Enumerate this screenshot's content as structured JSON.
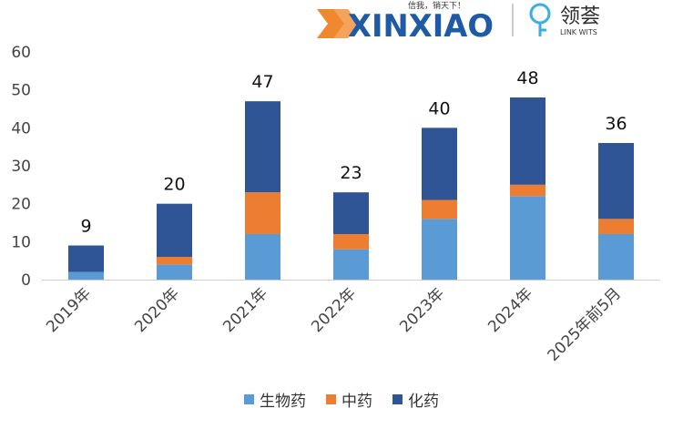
{
  "logos": {
    "xinxiao": {
      "name": "XINXIAO",
      "slogan": "信我，销天下！"
    },
    "linkwits": {
      "name_cn": "领荟",
      "name_en": "LINK WITS"
    }
  },
  "chart_data": {
    "type": "bar",
    "stacked": true,
    "categories": [
      "2019年",
      "2020年",
      "2021年",
      "2022年",
      "2023年",
      "2024年",
      "2025年前5月"
    ],
    "series": [
      {
        "name": "生物药",
        "color": "#5b9bd5",
        "values": [
          2,
          4,
          12,
          8,
          16,
          22,
          12
        ]
      },
      {
        "name": "中药",
        "color": "#ed7d31",
        "values": [
          0,
          2,
          11,
          4,
          5,
          3,
          4
        ]
      },
      {
        "name": "化药",
        "color": "#2f5597",
        "values": [
          7,
          14,
          24,
          11,
          19,
          23,
          20
        ]
      }
    ],
    "totals": [
      "9",
      "20",
      "47",
      "23",
      "40",
      "48",
      "36"
    ],
    "yticks": [
      "0",
      "10",
      "20",
      "30",
      "40",
      "50",
      "60"
    ],
    "ylim": [
      0,
      60
    ],
    "legend_position": "bottom",
    "grid": false
  }
}
